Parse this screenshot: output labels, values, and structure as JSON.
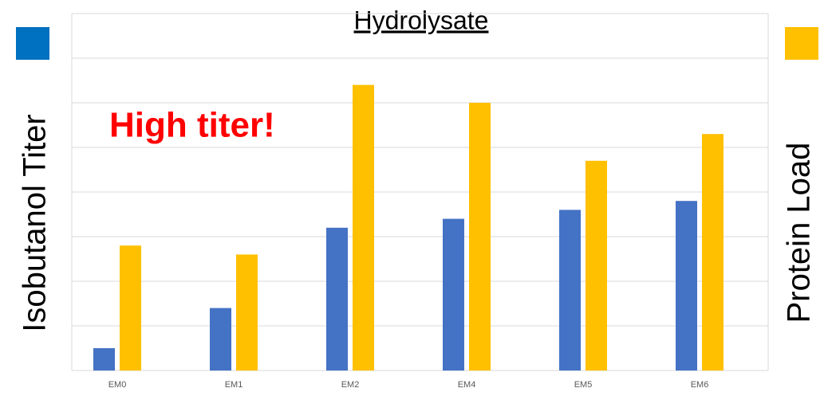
{
  "chart_data": {
    "type": "bar",
    "title": "Hydrolysate",
    "annotation": "High titer!",
    "categories": [
      "EM0",
      "EM1",
      "EM2",
      "EM4",
      "EM5",
      "EM6"
    ],
    "series": [
      {
        "name": "Isobutanol Titer",
        "color": "#4472c4",
        "values": [
          0.5,
          1.4,
          3.2,
          3.4,
          3.6,
          3.8
        ]
      },
      {
        "name": "Protein Load",
        "color": "#ffc000",
        "values": [
          2.8,
          2.6,
          6.4,
          6.0,
          4.7,
          5.3
        ]
      }
    ],
    "ylim": [
      0,
      8
    ],
    "yticks": [
      0,
      1,
      2,
      3,
      4,
      5,
      6,
      7,
      8
    ],
    "grid": true
  }
}
